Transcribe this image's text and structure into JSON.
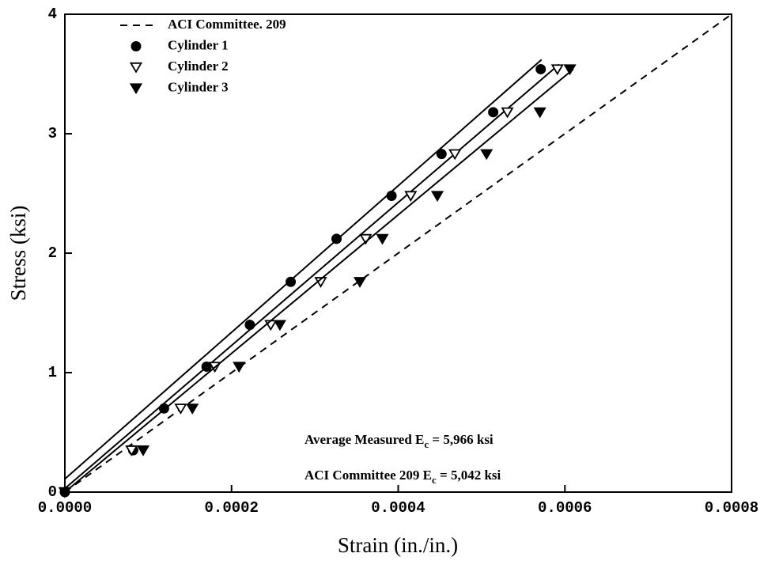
{
  "chart_data": {
    "type": "scatter",
    "xlabel": "Strain (in./in.)",
    "ylabel": "Stress (ksi)",
    "xlim": [
      0,
      0.0008
    ],
    "ylim": [
      0,
      4
    ],
    "xticks": [
      {
        "value": 0,
        "label": "0.0000"
      },
      {
        "value": 0.0002,
        "label": "0.0002"
      },
      {
        "value": 0.0004,
        "label": "0.0004"
      },
      {
        "value": 0.0006,
        "label": "0.0006"
      },
      {
        "value": 0.0008,
        "label": "0.0008"
      }
    ],
    "yticks": [
      0,
      1,
      2,
      3,
      4
    ],
    "legend": "upper left",
    "series": [
      {
        "name": "ACI Committee. 209",
        "color": "#000000",
        "marker": "none",
        "style": "dashed",
        "x": [
          0,
          0.0008
        ],
        "values": [
          0,
          4
        ]
      },
      {
        "name": "Cylinder 1",
        "color": "#000000",
        "marker": "circle",
        "style": "solid",
        "x": [
          0,
          8.2e-05,
          0.000119,
          0.00017,
          0.000222,
          0.000271,
          0.000326,
          0.000392,
          0.000452,
          0.000514,
          0.000571
        ],
        "values": [
          0,
          0.35,
          0.7,
          1.05,
          1.4,
          1.76,
          2.12,
          2.48,
          2.83,
          3.18,
          3.54
        ],
        "line_x": [
          0,
          0.000572
        ],
        "line_y": [
          0.11,
          3.62
        ]
      },
      {
        "name": "Cylinder 2",
        "color": "#000000",
        "marker": "open-triangle-down",
        "style": "solid",
        "x": [
          0,
          8e-05,
          0.000139,
          0.00018,
          0.000247,
          0.000307,
          0.000361,
          0.000415,
          0.000468,
          0.000531,
          0.000591
        ],
        "values": [
          0,
          0.35,
          0.7,
          1.05,
          1.4,
          1.76,
          2.12,
          2.48,
          2.83,
          3.18,
          3.54
        ],
        "line_x": [
          0,
          0.000593
        ],
        "line_y": [
          0.03,
          3.58
        ]
      },
      {
        "name": "Cylinder 3",
        "color": "#000000",
        "marker": "filled-triangle-down",
        "style": "solid",
        "x": [
          0,
          9.4e-05,
          0.000153,
          0.000209,
          0.000258,
          0.000354,
          0.000381,
          0.000447,
          0.000506,
          0.00057,
          0.000606
        ],
        "values": [
          0,
          0.35,
          0.7,
          1.05,
          1.4,
          1.76,
          2.12,
          2.48,
          2.83,
          3.18,
          3.54
        ],
        "line_x": [
          0,
          0.00061
        ],
        "line_y": [
          0,
          3.54
        ]
      }
    ],
    "annotations": [
      {
        "text": "Average Measured E",
        "sub": "c",
        "rest": " = 5,966 ksi"
      },
      {
        "text": "ACI Committee 209 E",
        "sub": "c",
        "rest": " = 5,042 ksi"
      }
    ]
  }
}
